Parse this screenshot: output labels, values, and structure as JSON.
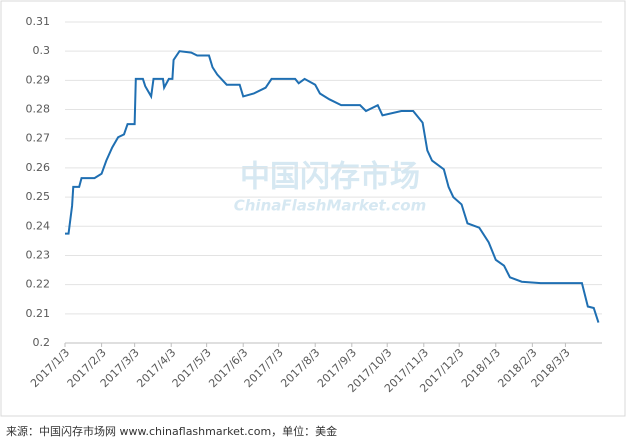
{
  "chart_data": {
    "type": "line",
    "watermark": [
      "中国闪存市场",
      "ChinaFlashMarket.com"
    ],
    "source": "来源：中国闪存市场网 www.chinaflashmarket.com，单位：美金",
    "x": [
      "2017/1/3",
      "2017/1/6",
      "2017/1/9",
      "2017/1/10",
      "2017/1/15",
      "2017/1/17",
      "2017/1/28",
      "2017/2/3",
      "2017/2/7",
      "2017/2/12",
      "2017/2/17",
      "2017/2/22",
      "2017/2/25",
      "2017/3/3",
      "2017/3/4",
      "2017/3/10",
      "2017/3/12",
      "2017/3/17",
      "2017/3/19",
      "2017/3/27",
      "2017/3/28",
      "2017/4/1",
      "2017/4/4",
      "2017/4/5",
      "2017/4/10",
      "2017/4/20",
      "2017/4/25",
      "2017/5/5",
      "2017/5/8",
      "2017/5/12",
      "2017/5/20",
      "2017/5/31",
      "2017/6/3",
      "2017/6/12",
      "2017/6/22",
      "2017/6/27",
      "2017/7/17",
      "2017/7/20",
      "2017/7/25",
      "2017/8/3",
      "2017/8/7",
      "2017/8/15",
      "2017/8/25",
      "2017/9/10",
      "2017/9/15",
      "2017/9/25",
      "2017/9/29",
      "2017/10/15",
      "2017/10/25",
      "2017/10/28",
      "2017/11/2",
      "2017/11/6",
      "2017/11/10",
      "2017/11/20",
      "2017/11/24",
      "2017/11/28",
      "2017/12/5",
      "2017/12/10",
      "2017/12/20",
      "2017/12/28",
      "2018/1/3",
      "2018/1/10",
      "2018/1/15",
      "2018/1/25",
      "2018/2/10",
      "2018/3/17",
      "2018/3/22",
      "2018/3/27",
      "2018/3/31"
    ],
    "series": [
      {
        "color": "#1f6fb2",
        "values": [
          0.2375,
          0.2375,
          0.247,
          0.2535,
          0.2535,
          0.2565,
          0.2565,
          0.258,
          0.2625,
          0.267,
          0.2705,
          0.2715,
          0.275,
          0.275,
          0.2905,
          0.2905,
          0.288,
          0.2845,
          0.2905,
          0.2905,
          0.2875,
          0.2905,
          0.2905,
          0.297,
          0.3,
          0.2995,
          0.2985,
          0.2985,
          0.2945,
          0.292,
          0.2885,
          0.2885,
          0.2845,
          0.2855,
          0.2875,
          0.2905,
          0.2905,
          0.289,
          0.2905,
          0.2885,
          0.2855,
          0.2835,
          0.2815,
          0.2815,
          0.2795,
          0.2815,
          0.278,
          0.2795,
          0.2795,
          0.278,
          0.2755,
          0.266,
          0.2625,
          0.2595,
          0.2535,
          0.25,
          0.2475,
          0.241,
          0.2395,
          0.2345,
          0.2285,
          0.2265,
          0.2225,
          0.221,
          0.2205,
          0.2205,
          0.2125,
          0.212,
          0.207
        ]
      }
    ],
    "xlim": [
      "2017/1/3",
      "2018/4/3"
    ],
    "xticks": [
      "2017/1/3",
      "2017/2/3",
      "2017/3/3",
      "2017/4/3",
      "2017/5/3",
      "2017/6/3",
      "2017/7/3",
      "2017/8/3",
      "2017/9/3",
      "2017/10/3",
      "2017/11/3",
      "2017/12/3",
      "2018/1/3",
      "2018/2/3",
      "2018/3/3"
    ],
    "ylim": [
      0.2,
      0.31
    ],
    "yticks": [
      0.2,
      0.21,
      0.22,
      0.23,
      0.24,
      0.25,
      0.26,
      0.27,
      0.28,
      0.29,
      0.3,
      0.31
    ],
    "grid": true
  }
}
